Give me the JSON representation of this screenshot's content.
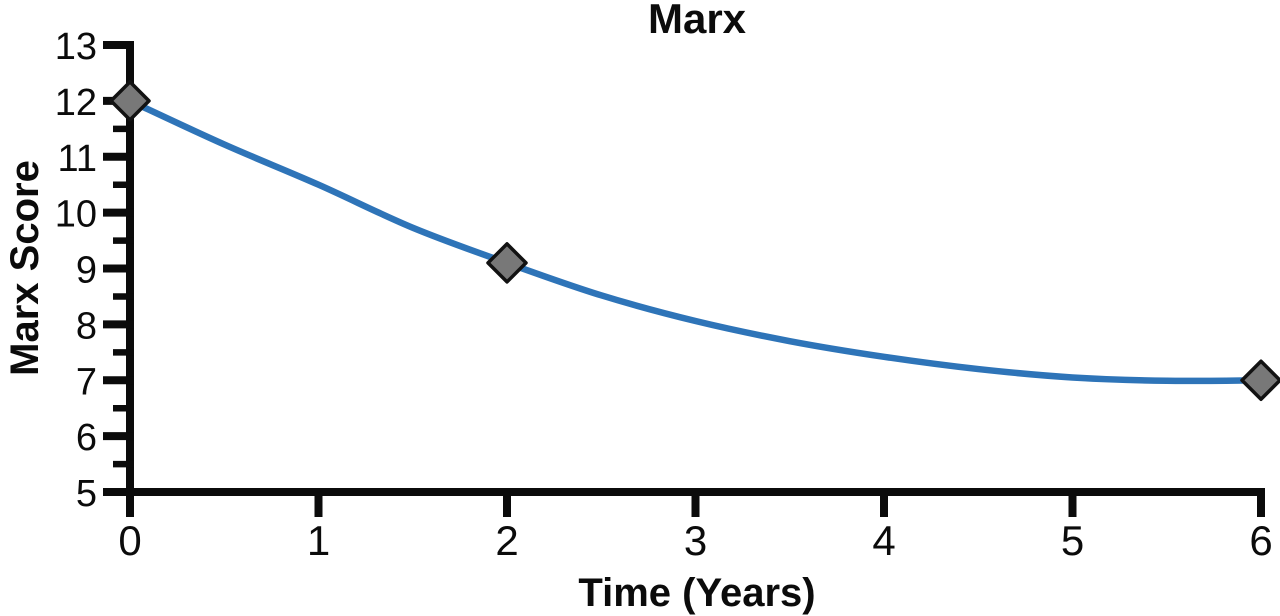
{
  "chart_data": {
    "type": "line",
    "title": "Marx",
    "xlabel": "Time (Years)",
    "ylabel": "Marx Score",
    "xlim": [
      0,
      6
    ],
    "ylim": [
      5,
      13
    ],
    "x_ticks": [
      0,
      1,
      2,
      3,
      4,
      5,
      6
    ],
    "y_ticks": [
      5,
      6,
      7,
      8,
      9,
      10,
      11,
      12,
      13
    ],
    "y_minor_ticks": [
      5.5,
      6.5,
      7.5,
      8.5,
      9.5,
      10.5,
      11.5
    ],
    "grid": false,
    "legend": "none",
    "background_color": "#ffffff",
    "axis_color": "#0b0b0b",
    "text_color": "#0b0b0b",
    "series": [
      {
        "name": "Marx Score",
        "style": "smooth-line",
        "line_color": "#2e74b8",
        "line_width": 6.5,
        "marker": "diamond",
        "marker_fill": "#787878",
        "marker_stroke": "#121212",
        "points": [
          [
            0,
            12
          ],
          [
            2,
            9.1
          ],
          [
            6,
            7
          ]
        ],
        "smoothed_curve": [
          [
            0,
            12
          ],
          [
            0.5,
            11.22
          ],
          [
            1,
            10.5
          ],
          [
            1.5,
            9.73
          ],
          [
            2,
            9.1
          ],
          [
            2.5,
            8.52
          ],
          [
            3,
            8.06
          ],
          [
            3.5,
            7.7
          ],
          [
            4,
            7.42
          ],
          [
            4.5,
            7.2
          ],
          [
            5,
            7.05
          ],
          [
            5.5,
            6.99
          ],
          [
            6,
            7.0
          ]
        ]
      }
    ]
  }
}
